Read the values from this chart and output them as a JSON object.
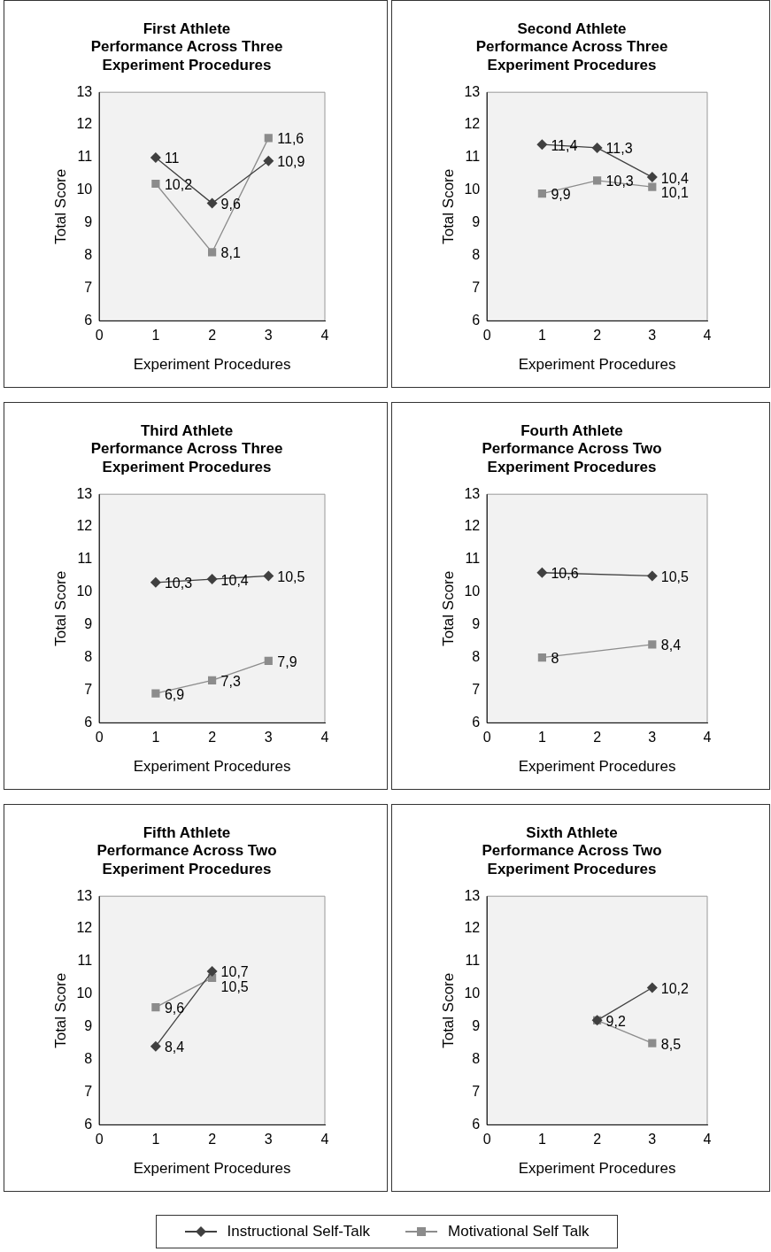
{
  "chart_data": [
    {
      "type": "line",
      "title": "First Athlete\nPerformance Across Three\nExperiment Procedures",
      "xlabel": "Experiment Procedures",
      "ylabel": "Total Score",
      "xlim": [
        0,
        4
      ],
      "xticks": [
        0,
        1,
        2,
        3,
        4
      ],
      "ylim": [
        6,
        13
      ],
      "yticks": [
        6,
        7,
        8,
        9,
        10,
        11,
        12,
        13
      ],
      "legend": "bottom",
      "series": [
        {
          "name": "Instructional Self-Talk",
          "color": "#404040",
          "marker": "diamond",
          "x": [
            1,
            2,
            3
          ],
          "values": [
            11,
            9.6,
            10.9
          ],
          "value_labels": [
            "11",
            "9,6",
            "10,9"
          ]
        },
        {
          "name": "Motivational Self Talk",
          "color": "#8c8c8c",
          "marker": "square",
          "x": [
            1,
            2,
            3
          ],
          "values": [
            10.2,
            8.1,
            11.6
          ],
          "value_labels": [
            "10,2",
            "8,1",
            "11,6"
          ]
        }
      ]
    },
    {
      "type": "line",
      "title": "Second Athlete\nPerformance Across Three\nExperiment Procedures",
      "xlabel": "Experiment Procedures",
      "ylabel": "Total Score",
      "xlim": [
        0,
        4
      ],
      "xticks": [
        0,
        1,
        2,
        3,
        4
      ],
      "ylim": [
        6,
        13
      ],
      "yticks": [
        6,
        7,
        8,
        9,
        10,
        11,
        12,
        13
      ],
      "legend": "bottom",
      "series": [
        {
          "name": "Instructional Self-Talk",
          "color": "#404040",
          "marker": "diamond",
          "x": [
            1,
            2,
            3
          ],
          "values": [
            11.4,
            11.3,
            10.4
          ],
          "value_labels": [
            "11,4",
            "11,3",
            "10,4"
          ]
        },
        {
          "name": "Motivational Self Talk",
          "color": "#8c8c8c",
          "marker": "square",
          "x": [
            1,
            2,
            3
          ],
          "values": [
            9.9,
            10.3,
            10.1
          ],
          "value_labels": [
            "9,9",
            "10,3",
            "10,1"
          ]
        }
      ]
    },
    {
      "type": "line",
      "title": "Third Athlete\nPerformance Across Three\nExperiment Procedures",
      "xlabel": "Experiment Procedures",
      "ylabel": "Total Score",
      "xlim": [
        0,
        4
      ],
      "xticks": [
        0,
        1,
        2,
        3,
        4
      ],
      "ylim": [
        6,
        13
      ],
      "yticks": [
        6,
        7,
        8,
        9,
        10,
        11,
        12,
        13
      ],
      "legend": "bottom",
      "series": [
        {
          "name": "Instructional Self-Talk",
          "color": "#404040",
          "marker": "diamond",
          "x": [
            1,
            2,
            3
          ],
          "values": [
            10.3,
            10.4,
            10.5
          ],
          "value_labels": [
            "10,3",
            "10,4",
            "10,5"
          ]
        },
        {
          "name": "Motivational Self Talk",
          "color": "#8c8c8c",
          "marker": "square",
          "x": [
            1,
            2,
            3
          ],
          "values": [
            6.9,
            7.3,
            7.9
          ],
          "value_labels": [
            "6,9",
            "7,3",
            "7,9"
          ]
        }
      ]
    },
    {
      "type": "line",
      "title": "Fourth Athlete\nPerformance Across Two\nExperiment Procedures",
      "xlabel": "Experiment Procedures",
      "ylabel": "Total Score",
      "xlim": [
        0,
        4
      ],
      "xticks": [
        0,
        1,
        2,
        3,
        4
      ],
      "ylim": [
        6,
        13
      ],
      "yticks": [
        6,
        7,
        8,
        9,
        10,
        11,
        12,
        13
      ],
      "legend": "bottom",
      "series": [
        {
          "name": "Instructional Self-Talk",
          "color": "#404040",
          "marker": "diamond",
          "x": [
            1,
            3
          ],
          "values": [
            10.6,
            10.5
          ],
          "value_labels": [
            "10,6",
            "10,5"
          ]
        },
        {
          "name": "Motivational Self Talk",
          "color": "#8c8c8c",
          "marker": "square",
          "x": [
            1,
            3
          ],
          "values": [
            8,
            8.4
          ],
          "value_labels": [
            "8",
            "8,4"
          ]
        }
      ]
    },
    {
      "type": "line",
      "title": "Fifth Athlete\nPerformance Across Two\nExperiment Procedures",
      "xlabel": "Experiment Procedures",
      "ylabel": "Total Score",
      "xlim": [
        0,
        4
      ],
      "xticks": [
        0,
        1,
        2,
        3,
        4
      ],
      "ylim": [
        6,
        13
      ],
      "yticks": [
        6,
        7,
        8,
        9,
        10,
        11,
        12,
        13
      ],
      "legend": "bottom",
      "series": [
        {
          "name": "Instructional Self-Talk",
          "color": "#404040",
          "marker": "diamond",
          "x": [
            1,
            2
          ],
          "values": [
            8.4,
            10.7
          ],
          "value_labels": [
            "8,4",
            "10,7"
          ]
        },
        {
          "name": "Motivational Self Talk",
          "color": "#8c8c8c",
          "marker": "square",
          "x": [
            1,
            2
          ],
          "values": [
            9.6,
            10.5
          ],
          "value_labels": [
            "9,6",
            "10,5"
          ]
        }
      ]
    },
    {
      "type": "line",
      "title": "Sixth Athlete\nPerformance Across Two\nExperiment Procedures",
      "xlabel": "Experiment Procedures",
      "ylabel": "Total Score",
      "xlim": [
        0,
        4
      ],
      "xticks": [
        0,
        1,
        2,
        3,
        4
      ],
      "ylim": [
        6,
        13
      ],
      "yticks": [
        6,
        7,
        8,
        9,
        10,
        11,
        12,
        13
      ],
      "legend": "bottom",
      "series": [
        {
          "name": "Instructional Self-Talk",
          "color": "#404040",
          "marker": "diamond",
          "x": [
            2,
            3
          ],
          "values": [
            9.2,
            10.2
          ],
          "value_labels": [
            "9,2",
            "10,2"
          ]
        },
        {
          "name": "Motivational Self Talk",
          "color": "#8c8c8c",
          "marker": "square",
          "x": [
            2,
            3
          ],
          "values": [
            9.2,
            8.5
          ],
          "value_labels": [
            null,
            "8,5"
          ]
        }
      ]
    }
  ]
}
